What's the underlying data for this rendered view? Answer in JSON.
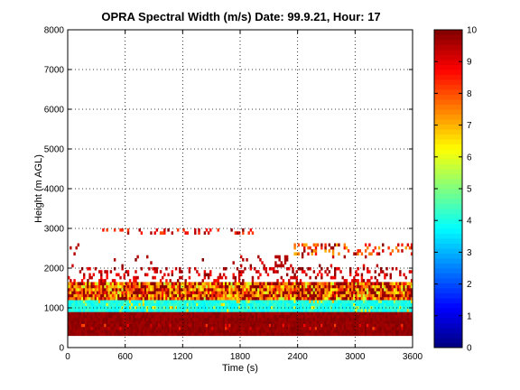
{
  "chart_data": {
    "type": "heatmap",
    "title": "OPRA Spectral Width (m/s)  Date: 99.9.21, Hour: 17",
    "xlabel": "Time (s)",
    "ylabel": "Height (m AGL)",
    "xlim": [
      0,
      3600
    ],
    "ylim": [
      0,
      8000
    ],
    "x_ticks": [
      "0",
      "600",
      "1200",
      "1800",
      "2400",
      "3000",
      "3600"
    ],
    "y_ticks": [
      "0",
      "1000",
      "2000",
      "3000",
      "4000",
      "5000",
      "6000",
      "7000",
      "8000"
    ],
    "grid": true,
    "colorbar": {
      "range": [
        0,
        10
      ],
      "ticks": [
        "0",
        "1",
        "2",
        "3",
        "4",
        "5",
        "6",
        "7",
        "8",
        "9",
        "10"
      ],
      "colormap": "jet"
    },
    "layers": [
      {
        "height_range_m": [
          300,
          900
        ],
        "dominant_value": 10,
        "note": "near-saturated dark red band"
      },
      {
        "height_range_m": [
          900,
          1200
        ],
        "dominant_value": 4,
        "note": "cyan band, values ~3.5-4.5"
      },
      {
        "height_range_m": [
          1200,
          1650
        ],
        "dominant_value": 7,
        "note": "mixed yellow/orange/red, values ~6-10"
      },
      {
        "height_range_m": [
          1650,
          2000
        ],
        "dominant_value": 9,
        "note": "sparse red/orange returns"
      },
      {
        "height_range_m": [
          2000,
          2600
        ],
        "dominant_value": 9,
        "note": "scattered returns, mostly after 2200 s"
      },
      {
        "height_range_m": [
          2850,
          3000
        ],
        "dominant_value": 9,
        "note": "sparse returns between ~350 and 1900 s"
      }
    ]
  },
  "colors": {
    "background": "#ffffff",
    "axes": "#000000",
    "grid": "#000000"
  }
}
